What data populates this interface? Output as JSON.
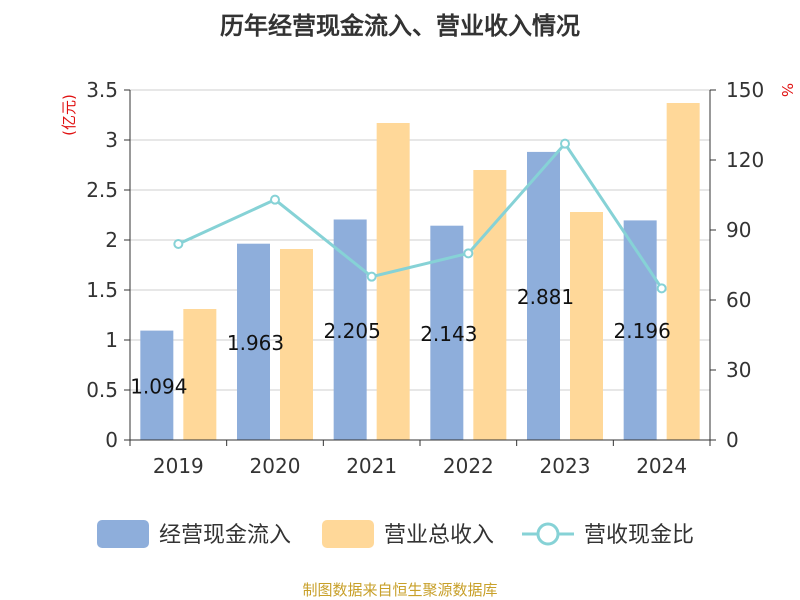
{
  "chart_data": {
    "type": "bar",
    "title": "历年经营现金流入、营业收入情况",
    "categories": [
      "2019",
      "2020",
      "2021",
      "2022",
      "2023",
      "2024"
    ],
    "series": [
      {
        "name": "经营现金流入",
        "type": "bar",
        "axis": "left",
        "color": "#8eaedb",
        "values": [
          1.094,
          1.963,
          2.205,
          2.143,
          2.881,
          2.196
        ]
      },
      {
        "name": "营业总收入",
        "type": "bar",
        "axis": "left",
        "color": "#ffd899",
        "values": [
          1.31,
          1.91,
          3.17,
          2.7,
          2.28,
          3.37
        ]
      },
      {
        "name": "营收现金比",
        "type": "line",
        "axis": "right",
        "color": "#86d2d6",
        "values": [
          84,
          103,
          70,
          80,
          127,
          65
        ]
      }
    ],
    "data_labels": [
      "1.094",
      "1.963",
      "2.205",
      "2.143",
      "2.881",
      "2.196"
    ],
    "y_left": {
      "unit": "亿元",
      "ylim": [
        0,
        3.5
      ],
      "ticks": [
        "0",
        "0.5",
        "1",
        "1.5",
        "2",
        "2.5",
        "3",
        "3.5"
      ]
    },
    "y_right": {
      "unit": "%",
      "ylim": [
        0,
        150
      ],
      "ticks": [
        "0",
        "30",
        "60",
        "90",
        "120",
        "150"
      ]
    },
    "grid": true,
    "legend_position": "bottom"
  },
  "source": "制图数据来自恒生聚源数据库"
}
